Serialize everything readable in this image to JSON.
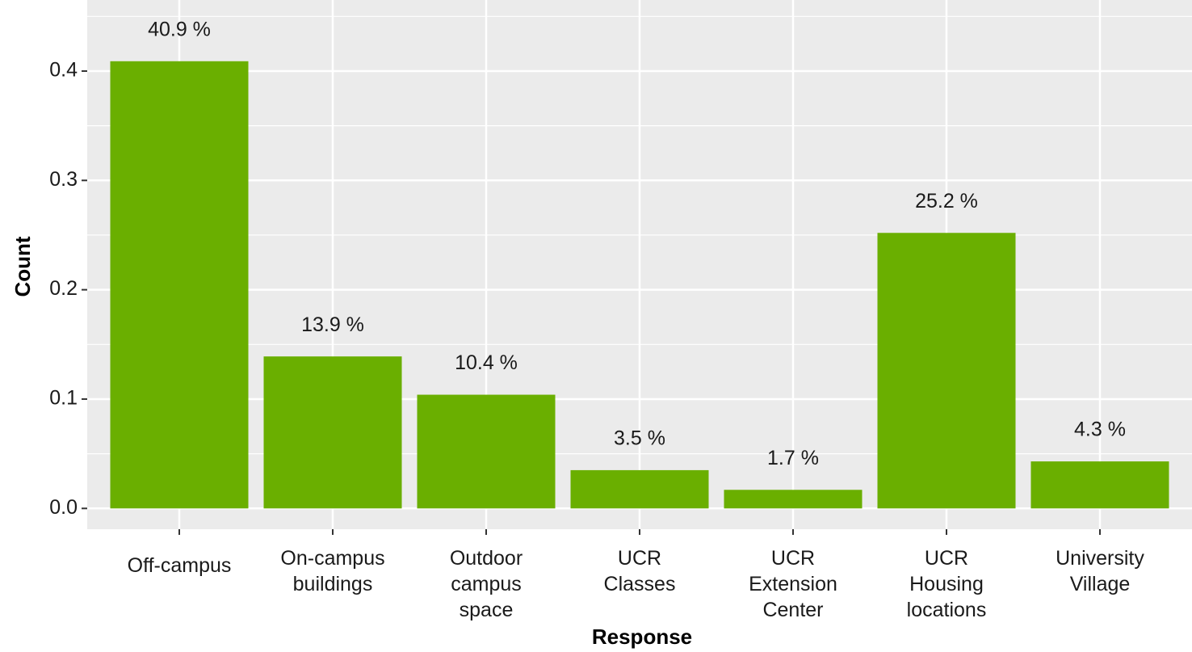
{
  "chart_data": {
    "type": "bar",
    "categories": [
      "Off-campus",
      "On-campus\nbuildings",
      "Outdoor\ncampus\nspace",
      "UCR\nClasses",
      "UCR\nExtension\nCenter",
      "UCR\nHousing\nlocations",
      "University\nVillage"
    ],
    "values": [
      0.409,
      0.139,
      0.104,
      0.035,
      0.017,
      0.252,
      0.043
    ],
    "value_labels": [
      "40.9 %",
      "13.9 %",
      "10.4 %",
      "3.5 %",
      "1.7 %",
      "25.2 %",
      "4.3 %"
    ],
    "color": "#6aaf00",
    "x_label": "Response",
    "y_label": "Count",
    "ylim": [
      -0.019,
      0.465
    ],
    "yticks": [
      {
        "value": 0,
        "label": "0.0"
      },
      0.1,
      0.2,
      0.3,
      0.4
    ],
    "grid": true
  }
}
